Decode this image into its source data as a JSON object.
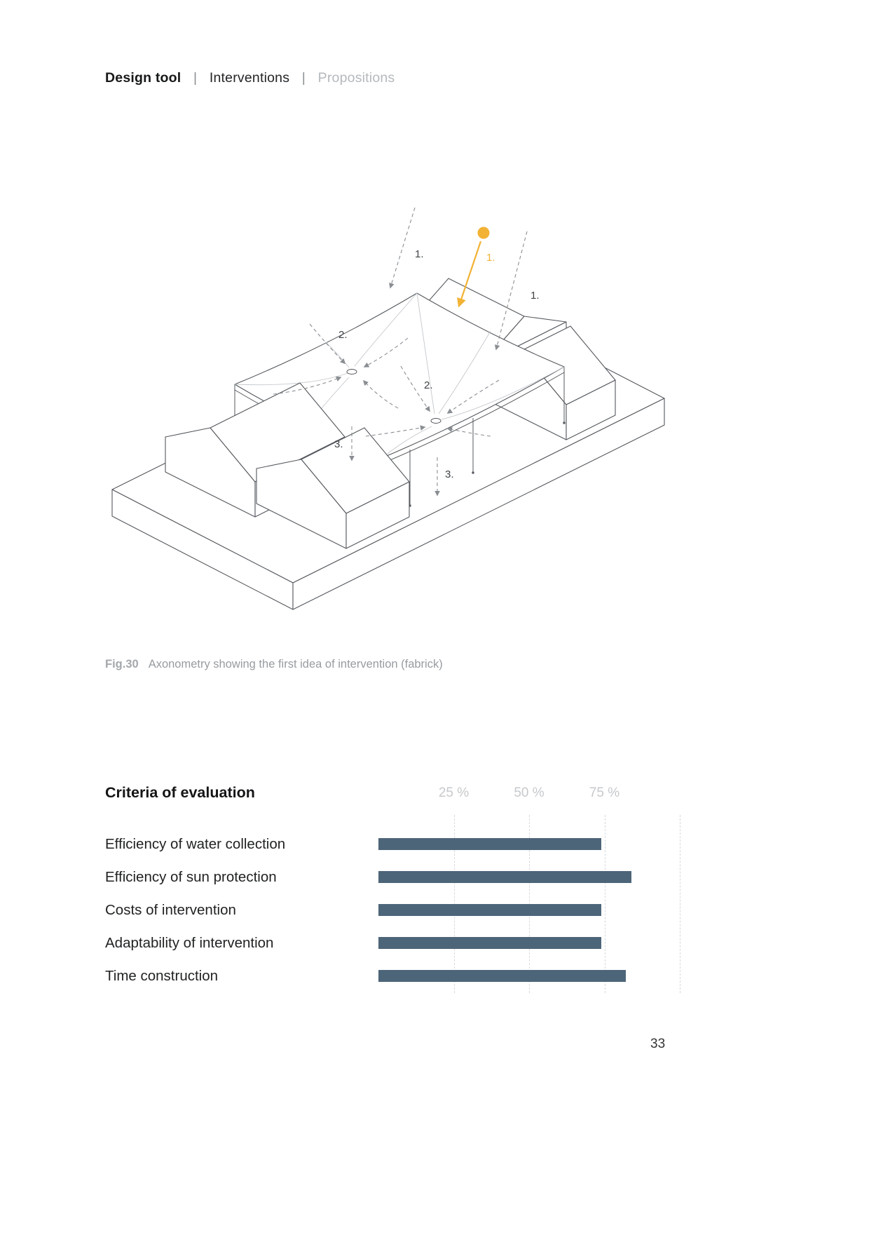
{
  "header": {
    "items": [
      {
        "label": "Design tool"
      },
      {
        "label": "Interventions"
      },
      {
        "label": "Propositions"
      }
    ],
    "separator": "|"
  },
  "figure": {
    "caption_tag": "Fig.30",
    "caption_text": "Axonometry showing the first idea of intervention (fabrick)",
    "annotations": {
      "n1a": "1.",
      "n1b": "1.",
      "n1c": "1.",
      "n2a": "2.",
      "n2b": "2.",
      "n3a": "3.",
      "n3b": "3."
    },
    "colors": {
      "accent": "#F2B234",
      "line": "#54585d",
      "dash": "#8a8e93",
      "seam": "#c3c7cc"
    }
  },
  "chart_data": {
    "type": "bar",
    "orientation": "horizontal",
    "title": "Criteria of evaluation",
    "categories": [
      "Efficiency of water collection",
      "Efficiency of sun protection",
      "Costs of intervention",
      "Adaptability of intervention",
      "Time construction"
    ],
    "values": [
      74,
      84,
      74,
      74,
      82
    ],
    "unit": "%",
    "xlim": [
      0,
      100
    ],
    "ticks": [
      {
        "value": 25,
        "label": "25 %"
      },
      {
        "value": 50,
        "label": "50 %"
      },
      {
        "value": 75,
        "label": "75 %"
      }
    ],
    "gridlines": [
      25,
      50,
      75,
      100
    ],
    "grid_on": true,
    "legend_position": "none",
    "bar_color": "#4d6579"
  },
  "page": {
    "number": "33"
  }
}
